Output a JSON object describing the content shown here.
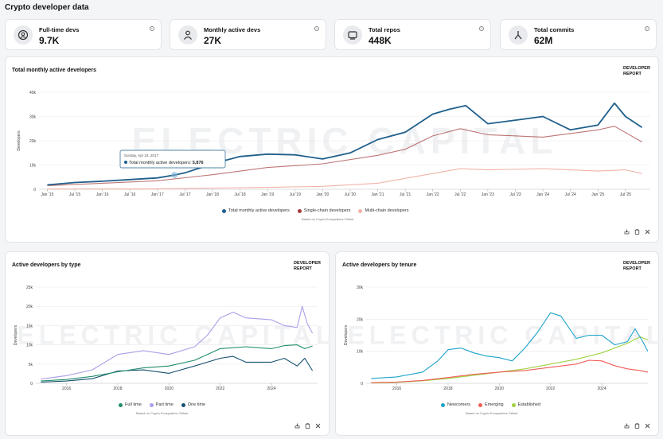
{
  "page_title": "Crypto developer data",
  "stats": [
    {
      "label": "Full-time devs",
      "value": "9.7K",
      "icon": "user-badge-icon"
    },
    {
      "label": "Monthly active devs",
      "value": "27K",
      "icon": "person-icon"
    },
    {
      "label": "Total repos",
      "value": "448K",
      "icon": "repo-icon"
    },
    {
      "label": "Total commits",
      "value": "62M",
      "icon": "commit-icon"
    }
  ],
  "dev_report": "DEVELOPER REPORT",
  "watermark": "ELECTRIC CAPITAL",
  "source_note": "Based on Crypto Ecosystems Github",
  "colors": {
    "dark_blue": "#1f5f8b",
    "dark_red": "#a33a3a",
    "pink": "#f0b3a8",
    "lavender": "#a99ee8",
    "teal": "#1f8c6b",
    "navy": "#16506e",
    "cyan": "#1ca3c9",
    "red": "#ee5c55",
    "lime": "#9fd141"
  },
  "charts": [
    {
      "type": "line",
      "title": "Total monthly active developers",
      "ylabel": "Developers",
      "ylim": [
        0,
        40000
      ],
      "yticks": [
        "0",
        "10k",
        "20k",
        "30k",
        "40k"
      ],
      "xticks": [
        "Jan '15",
        "Jul '15",
        "Jan '16",
        "Jul '16",
        "Jan '17",
        "Jul '17",
        "Jan '18",
        "Jul '18",
        "Jan '19",
        "Jul '19",
        "Jan '20",
        "Jul '20",
        "Jan '21",
        "Jul '21",
        "Jan '22",
        "Jul '22",
        "Jan '23",
        "Jul '23",
        "Jan '24",
        "Jul '24",
        "Jan '25",
        "Jul '25"
      ],
      "tooltip": {
        "date": "Sunday, Apr 23, 2017",
        "label": "Total monthly active developers:",
        "value": "5,876"
      },
      "series": [
        {
          "name": "Total monthly active developers",
          "color": "#1f5f8b",
          "x": [
            2015.0,
            2015.5,
            2016.0,
            2016.5,
            2017.0,
            2017.31,
            2017.5,
            2018.0,
            2018.5,
            2019.0,
            2019.5,
            2020.0,
            2020.5,
            2021.0,
            2021.5,
            2022.0,
            2022.3,
            2022.6,
            2023.0,
            2023.5,
            2024.0,
            2024.5,
            2025.0,
            2025.3,
            2025.5,
            2025.8
          ],
          "y": [
            1800,
            2800,
            3300,
            4000,
            4700,
            5876,
            6800,
            10500,
            13500,
            14500,
            14200,
            12500,
            15000,
            20500,
            23500,
            31000,
            33000,
            34500,
            27000,
            28500,
            30000,
            24500,
            26500,
            35500,
            30000,
            25500
          ]
        },
        {
          "name": "Single-chain developers",
          "color": "#a33a3a",
          "x": [
            2015.0,
            2016.0,
            2017.0,
            2018.0,
            2019.0,
            2020.0,
            2021.0,
            2021.5,
            2022.0,
            2022.5,
            2023.0,
            2024.0,
            2025.0,
            2025.3,
            2025.8
          ],
          "y": [
            1500,
            2500,
            3500,
            6000,
            9000,
            10500,
            14000,
            16500,
            22000,
            25000,
            22500,
            21500,
            24500,
            26000,
            19500
          ]
        },
        {
          "name": "Multi-chain developers",
          "color": "#f0b3a8",
          "x": [
            2015.0,
            2017.0,
            2018.0,
            2019.0,
            2020.0,
            2021.0,
            2022.0,
            2022.5,
            2023.0,
            2024.0,
            2025.0,
            2025.5,
            2025.8
          ],
          "y": [
            100,
            200,
            500,
            800,
            1200,
            2500,
            6500,
            8500,
            8000,
            8500,
            7500,
            8000,
            6500
          ]
        }
      ]
    },
    {
      "type": "line",
      "title": "Active developers by type",
      "ylabel": "Developers",
      "ylim": [
        0,
        25000
      ],
      "yticks": [
        "0",
        "5k",
        "10k",
        "15k",
        "20k",
        "25k"
      ],
      "xticks": [
        "2016",
        "2018",
        "2020",
        "2022",
        "2024"
      ],
      "series": [
        {
          "name": "Full time",
          "color": "#1f8c6b",
          "x": [
            2015.0,
            2016.0,
            2017.0,
            2018.0,
            2019.0,
            2020.0,
            2021.0,
            2021.5,
            2022.0,
            2023.0,
            2024.0,
            2024.5,
            2025.0,
            2025.3,
            2025.6
          ],
          "y": [
            600,
            1000,
            1800,
            3000,
            4000,
            4500,
            6000,
            7500,
            9000,
            9500,
            9000,
            9800,
            10000,
            9000,
            9700
          ]
        },
        {
          "name": "Part time",
          "color": "#a99ee8",
          "x": [
            2015.0,
            2016.0,
            2017.0,
            2018.0,
            2019.0,
            2020.0,
            2021.0,
            2021.5,
            2022.0,
            2022.5,
            2023.0,
            2024.0,
            2024.5,
            2025.0,
            2025.2,
            2025.4,
            2025.6
          ],
          "y": [
            1100,
            2000,
            3500,
            7500,
            8500,
            7500,
            9500,
            12500,
            17000,
            18500,
            17000,
            16500,
            15000,
            14500,
            20000,
            15500,
            13000
          ]
        },
        {
          "name": "One time",
          "color": "#16506e",
          "x": [
            2015.0,
            2016.0,
            2017.0,
            2018.0,
            2019.0,
            2020.0,
            2021.0,
            2022.0,
            2022.5,
            2023.0,
            2024.0,
            2024.5,
            2025.0,
            2025.3,
            2025.6
          ],
          "y": [
            300,
            600,
            1200,
            3200,
            3500,
            2600,
            4500,
            6500,
            7000,
            5500,
            5500,
            6500,
            4500,
            6500,
            3300
          ]
        }
      ],
      "legend_order": [
        "Full time",
        "Part time",
        "One time"
      ]
    },
    {
      "type": "line",
      "title": "Active developers by tenure",
      "ylabel": "Developers",
      "ylim": [
        0,
        30000
      ],
      "yticks": [
        "0",
        "10k",
        "20k",
        "30k"
      ],
      "xticks": [
        "2016",
        "2018",
        "2020",
        "2022",
        "2024"
      ],
      "series": [
        {
          "name": "Newcomers",
          "color": "#1ca3c9",
          "x": [
            2015.0,
            2016.0,
            2017.0,
            2017.6,
            2018.0,
            2018.5,
            2019.0,
            2019.5,
            2020.0,
            2020.5,
            2021.0,
            2021.5,
            2022.0,
            2022.4,
            2023.0,
            2023.5,
            2024.0,
            2024.5,
            2025.0,
            2025.3,
            2025.6,
            2025.8
          ],
          "y": [
            1500,
            2000,
            3500,
            7000,
            10500,
            11000,
            9500,
            8500,
            8000,
            7000,
            11000,
            16000,
            22000,
            21000,
            14000,
            15000,
            15000,
            12000,
            13000,
            17000,
            13000,
            10000
          ]
        },
        {
          "name": "Emerging",
          "color": "#ee5c55",
          "x": [
            2015.0,
            2016.0,
            2017.0,
            2018.0,
            2019.0,
            2020.0,
            2021.0,
            2022.0,
            2023.0,
            2023.5,
            2024.0,
            2024.5,
            2025.0,
            2025.5,
            2025.8
          ],
          "y": [
            200,
            400,
            900,
            1800,
            2800,
            3500,
            4000,
            5000,
            6000,
            7200,
            7000,
            5500,
            4500,
            4000,
            3500
          ]
        },
        {
          "name": "Established",
          "color": "#9fd141",
          "x": [
            2015.0,
            2016.0,
            2017.0,
            2018.0,
            2019.0,
            2020.0,
            2021.0,
            2022.0,
            2023.0,
            2024.0,
            2025.0,
            2025.5,
            2025.8
          ],
          "y": [
            100,
            300,
            800,
            1500,
            2500,
            3500,
            4500,
            6000,
            7500,
            9500,
            12500,
            14500,
            13500
          ]
        }
      ],
      "legend_order": [
        "Newcomers",
        "Emerging",
        "Established"
      ]
    }
  ]
}
